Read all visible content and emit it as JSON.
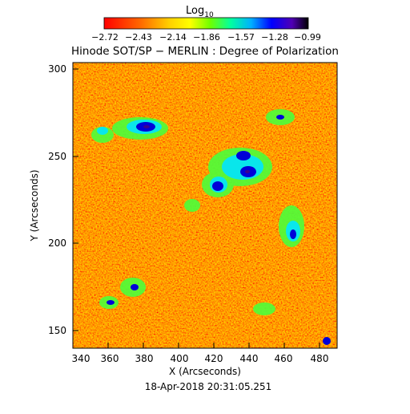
{
  "colorbar": {
    "label_main": "Log",
    "label_sub": "10",
    "ticks": [
      "−2.72",
      "−2.43",
      "−2.14",
      "−1.86",
      "−1.57",
      "−1.28",
      "−0.99"
    ],
    "colors": [
      "#ff0000",
      "#ff5a00",
      "#ffb400",
      "#ffff00",
      "#7dff00",
      "#00ff8c",
      "#00a0ff",
      "#0000ff",
      "#4b00c8",
      "#000000"
    ]
  },
  "title": "Hinode SOT/SP − MERLIN : Degree of Polarization",
  "x_axis": {
    "label": "X (Arcseconds)",
    "ticks": [
      "340",
      "360",
      "380",
      "400",
      "420",
      "440",
      "460",
      "480"
    ]
  },
  "y_axis": {
    "label": "Y (Arcseconds)",
    "ticks": [
      "300",
      "250",
      "200",
      "150"
    ]
  },
  "timestamp": "18-Apr-2018 20:31:05.251"
}
